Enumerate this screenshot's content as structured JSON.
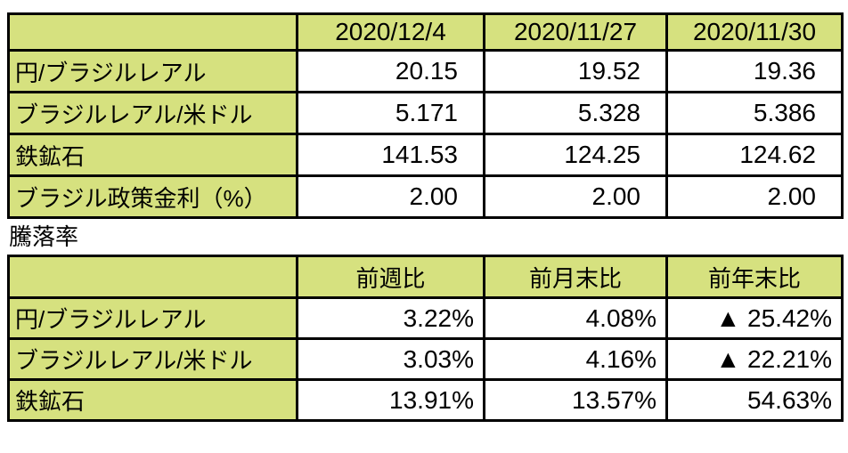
{
  "colors": {
    "header_fill": "#d6e17f",
    "border": "#000000",
    "text": "#000000",
    "background": "#ffffff"
  },
  "price_table": {
    "columns": [
      "2020/12/4",
      "2020/11/27",
      "2020/11/30"
    ],
    "rows": [
      {
        "label": "円/ブラジルレアル",
        "values": [
          "20.15",
          "19.52",
          "19.36"
        ]
      },
      {
        "label": "ブラジルレアル/米ドル",
        "values": [
          "5.171",
          "5.328",
          "5.386"
        ]
      },
      {
        "label": "鉄鉱石",
        "values": [
          "141.53",
          "124.25",
          "124.62"
        ]
      },
      {
        "label": "ブラジル政策金利（%）",
        "values": [
          "2.00",
          "2.00",
          "2.00"
        ]
      }
    ]
  },
  "section_label": "騰落率",
  "change_table": {
    "columns": [
      "前週比",
      "前月末比",
      "前年末比"
    ],
    "rows": [
      {
        "label": "円/ブラジルレアル",
        "values": [
          "3.22%",
          "4.08%",
          "▲ 25.42%"
        ]
      },
      {
        "label": "ブラジルレアル/米ドル",
        "values": [
          "3.03%",
          "4.16%",
          "▲ 22.21%"
        ]
      },
      {
        "label": "鉄鉱石",
        "values": [
          "13.91%",
          "13.57%",
          "54.63%"
        ]
      }
    ]
  }
}
